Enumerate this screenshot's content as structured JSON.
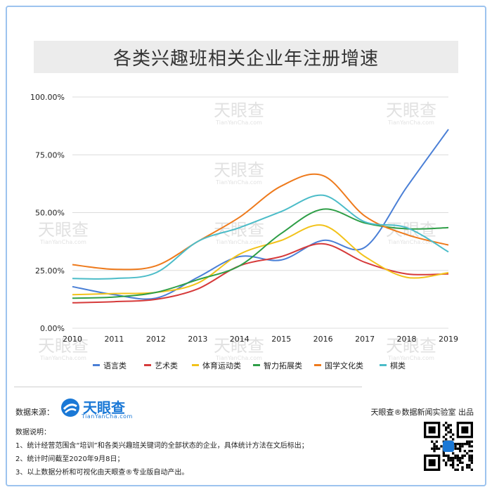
{
  "title": "各类兴趣班相关企业年注册增速",
  "watermark": {
    "name": "天眼查",
    "sub": "TianYanCha.com"
  },
  "source_label": "数据来源：",
  "logo": {
    "name": "天眼查",
    "url": "TianYanCha.com"
  },
  "producer": "天眼查®数据新闻实验室 出品",
  "notes": {
    "heading": "数据说明：",
    "lines": [
      "1、统计经营范围含“培训”和各类兴趣班关键词的全部状态的企业，具体统计方法在文后标出；",
      "2、统计时间截至2020年9月8日；",
      "3、以上数据分析和可视化由天眼查®专业版自动产出。"
    ]
  },
  "chart_data": {
    "type": "line",
    "x": [
      "2010",
      "2011",
      "2012",
      "2013",
      "2014",
      "2015",
      "2016",
      "2017",
      "2018",
      "2019"
    ],
    "y_ticks": [
      "0.00%",
      "25.00%",
      "50.00%",
      "75.00%",
      "100.00%"
    ],
    "ylim": [
      0,
      100
    ],
    "grid": "horizontal",
    "legend_position": "bottom",
    "series": [
      {
        "name": "语言类",
        "color": "#4a7fd6",
        "values": [
          18,
          14.5,
          13,
          22,
          31,
          29.5,
          38,
          35,
          61,
          86
        ]
      },
      {
        "name": "艺术类",
        "color": "#d63a3a",
        "values": [
          11,
          11.5,
          12.5,
          17,
          27,
          31,
          36.5,
          28.5,
          23.5,
          23.5
        ]
      },
      {
        "name": "体育运动类",
        "color": "#f2c21a",
        "values": [
          14.5,
          15,
          15.5,
          19.5,
          32,
          38,
          44.5,
          31,
          22,
          24
        ]
      },
      {
        "name": "智力拓展类",
        "color": "#2e9e47",
        "values": [
          13,
          13.5,
          15.5,
          21,
          27,
          41,
          51.5,
          45.5,
          43,
          43.5
        ]
      },
      {
        "name": "国学文化类",
        "color": "#ee7a1c",
        "values": [
          27.5,
          25.5,
          27,
          37.5,
          48,
          61.5,
          66,
          48.5,
          40.5,
          36
        ]
      },
      {
        "name": "棋类",
        "color": "#4bbcc8",
        "values": [
          21.5,
          21.5,
          24,
          37.5,
          43.5,
          50.5,
          57.5,
          46,
          43.5,
          33
        ]
      }
    ]
  }
}
